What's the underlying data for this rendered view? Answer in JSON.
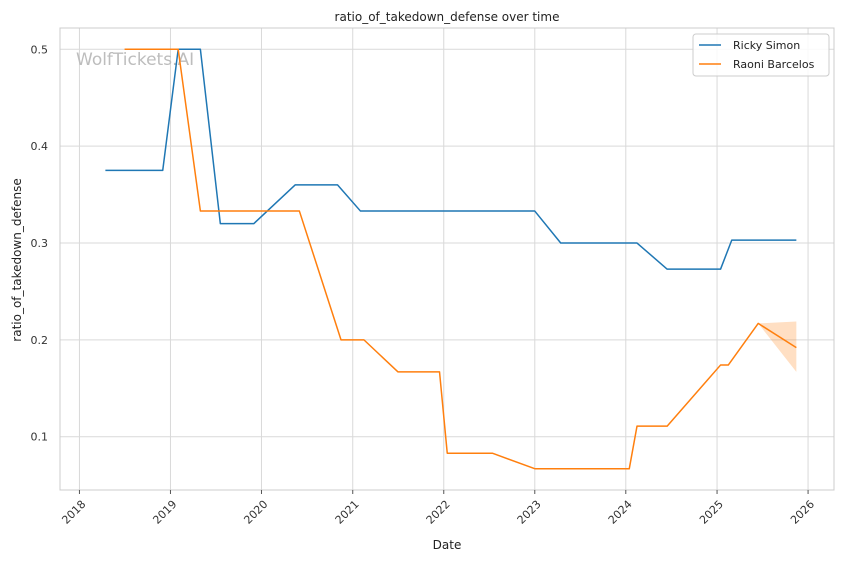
{
  "chart_data": {
    "type": "line",
    "title": "ratio_of_takedown_defense over time",
    "xlabel": "Date",
    "ylabel": "ratio_of_takedown_defense",
    "watermark": "WolfTickets.AI",
    "xlim": [
      "2017-10-15",
      "2026-04-15"
    ],
    "ylim": [
      0.045,
      0.522
    ],
    "x_ticks": [
      "2018",
      "2019",
      "2020",
      "2021",
      "2022",
      "2023",
      "2024",
      "2025",
      "2026"
    ],
    "y_ticks": [
      0.1,
      0.2,
      0.3,
      0.4,
      0.5
    ],
    "y_tick_labels": [
      "0.1",
      "0.2",
      "0.3",
      "0.4",
      "0.5"
    ],
    "grid": true,
    "legend_position": "top-right",
    "series": [
      {
        "name": "Ricky Simon",
        "color": "#1f77b4",
        "x": [
          "2018-04-15",
          "2018-12-01",
          "2019-02-01",
          "2019-05-01",
          "2019-07-20",
          "2019-12-01",
          "2020-05-15",
          "2020-11-01",
          "2021-02-01",
          "2023-01-01",
          "2023-04-15",
          "2024-02-15",
          "2024-06-15",
          "2025-01-15",
          "2025-03-01",
          "2025-11-15"
        ],
        "y": [
          0.375,
          0.375,
          0.5,
          0.5,
          0.32,
          0.32,
          0.36,
          0.36,
          0.333,
          0.333,
          0.3,
          0.3,
          0.273,
          0.273,
          0.303,
          0.303
        ]
      },
      {
        "name": "Raoni Barcelos",
        "color": "#ff7f0e",
        "x": [
          "2018-07-01",
          "2019-02-01",
          "2019-05-01",
          "2020-06-01",
          "2020-11-15",
          "2021-02-15",
          "2021-07-01",
          "2021-12-15",
          "2022-01-15",
          "2022-07-15",
          "2023-01-01",
          "2024-01-15",
          "2024-02-15",
          "2024-06-15",
          "2025-01-15",
          "2025-02-15",
          "2025-06-15",
          "2025-11-15"
        ],
        "y": [
          0.5,
          0.5,
          0.333,
          0.333,
          0.2,
          0.2,
          0.167,
          0.167,
          0.083,
          0.083,
          0.067,
          0.067,
          0.111,
          0.111,
          0.174,
          0.174,
          0.217,
          0.192
        ],
        "band": {
          "x": [
            "2025-06-15",
            "2025-11-15"
          ],
          "lower": [
            0.217,
            0.167
          ],
          "upper": [
            0.217,
            0.219
          ]
        }
      }
    ]
  }
}
